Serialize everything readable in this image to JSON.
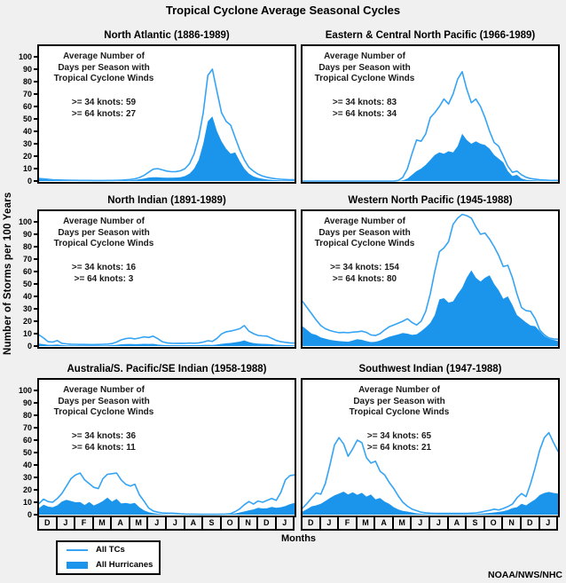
{
  "page": {
    "title": "Tropical Cyclone Average Seasonal Cycles",
    "y_axis_label": "Number of Storms per 100 Years",
    "months_label": "Months",
    "attribution": "NOAA/NWS/NHC"
  },
  "colors": {
    "tc_line": "#35a4f4",
    "hurricane_fill": "#1b95ec",
    "page_bg": "#f0f0f0",
    "panel_bg": "#ffffff",
    "border": "#000000"
  },
  "axis": {
    "y_ticks": [
      100,
      90,
      80,
      70,
      60,
      50,
      40,
      30,
      20,
      10,
      0
    ],
    "month_labels": [
      "D",
      "J",
      "F",
      "M",
      "A",
      "M",
      "J",
      "J",
      "A",
      "S",
      "O",
      "N",
      "D",
      "J"
    ]
  },
  "legend": {
    "items": [
      {
        "label": "All TCs",
        "type": "line"
      },
      {
        "label": "All Hurricanes",
        "type": "fill"
      }
    ]
  },
  "panels": [
    {
      "title": "North Atlantic (1886-1989)",
      "ann": [
        "Average Number of",
        "Days per Season with",
        "Tropical Cyclone Winds"
      ],
      "knots34": ">= 34 knots: 59",
      "knots64": ">= 64 knots: 27"
    },
    {
      "title": "Eastern & Central North Pacific (1966-1989)",
      "ann": [
        "Average Number of",
        "Days per Season with",
        "Tropical Cyclone Winds"
      ],
      "knots34": ">= 34 knots: 83",
      "knots64": ">= 64 knots: 34"
    },
    {
      "title": "North Indian (1891-1989)",
      "ann": [
        "Average Number of",
        "Days per Season with",
        "Tropical Cyclone Winds"
      ],
      "knots34": ">= 34 knots: 16",
      "knots64": ">= 64 knots: 3"
    },
    {
      "title": "Western North Pacific (1945-1988)",
      "ann": [
        "Average Number of",
        "Days per Season with",
        "Tropical Cyclone Winds"
      ],
      "knots34": ">= 34 knots: 154",
      "knots64": ">= 64 knots: 80",
      "knots34_value": 154
    },
    {
      "title": "Australia/S. Pacific/SE Indian (1958-1988)",
      "ann": [
        "Average Number of",
        "Days per Season with",
        "Tropical Cyclone Winds"
      ],
      "knots34": ">= 34 knots: 36",
      "knots64": ">= 64 knots: 11"
    },
    {
      "title": "Southwest Indian (1947-1988)",
      "ann": [
        "Average Number of",
        "Days per Season with",
        "Tropical Cyclone Winds"
      ],
      "knots34": ">= 34 knots: 65",
      "knots64": ">= 64 knots: 21"
    }
  ],
  "chart_data": [
    {
      "type": "area",
      "region": "North Atlantic",
      "period": "1886-1989",
      "title": "North Atlantic (1886-1989)",
      "xlabel": "Months",
      "ylabel": "Number of Storms per 100 Years",
      "ylim": [
        0,
        100
      ],
      "x_months": [
        "D",
        "J",
        "F",
        "M",
        "A",
        "M",
        "J",
        "J",
        "A",
        "S",
        "O",
        "N",
        "D",
        "J"
      ],
      "x_start": 0,
      "x_step": 0.25,
      "days_per_season": {
        "ge34_knots": 59,
        "ge64_knots": 27
      },
      "series": [
        {
          "name": "All TCs",
          "values": [
            2,
            1.7,
            1.4,
            1.1,
            0.9,
            0.8,
            0.7,
            0.6,
            0.6,
            0.5,
            0.5,
            0.5,
            0.4,
            0.4,
            0.4,
            0.5,
            0.5,
            0.6,
            0.7,
            0.9,
            1.2,
            1.8,
            2.8,
            4.5,
            7,
            9.5,
            10,
            9,
            8,
            7.5,
            7.6,
            8.2,
            10,
            14,
            22,
            35,
            55,
            85,
            90,
            72,
            55,
            48,
            45,
            35,
            25,
            17,
            11,
            8,
            5.5,
            4,
            3,
            2.3,
            1.8,
            1.4,
            1.2,
            1,
            1
          ]
        },
        {
          "name": "All Hurricanes",
          "values": [
            1.5,
            1.2,
            1,
            0.8,
            0.6,
            0.5,
            0.4,
            0.4,
            0.3,
            0.3,
            0.3,
            0.3,
            0.3,
            0.3,
            0.3,
            0.3,
            0.3,
            0.3,
            0.4,
            0.5,
            0.6,
            0.9,
            1.4,
            2,
            2.8,
            3,
            3,
            2.8,
            2.7,
            2.7,
            2.8,
            3.1,
            4,
            6,
            10,
            17,
            30,
            48,
            52,
            40,
            32,
            26,
            22,
            23,
            16,
            10,
            6,
            3.8,
            2.5,
            1.8,
            1.2,
            0.9,
            0.7,
            0.6,
            0.5,
            0.4,
            0.4
          ]
        }
      ]
    },
    {
      "type": "area",
      "region": "Eastern & Central North Pacific",
      "period": "1966-1989",
      "title": "Eastern & Central North Pacific (1966-1989)",
      "xlabel": "Months",
      "ylabel": "Number of Storms per 100 Years",
      "ylim": [
        0,
        100
      ],
      "x_months": [
        "D",
        "J",
        "F",
        "M",
        "A",
        "M",
        "J",
        "J",
        "A",
        "S",
        "O",
        "N",
        "D",
        "J"
      ],
      "x_start": 0,
      "x_step": 0.25,
      "days_per_season": {
        "ge34_knots": 83,
        "ge64_knots": 34
      },
      "series": [
        {
          "name": "All TCs",
          "values": [
            0,
            0,
            0,
            0,
            0,
            0,
            0,
            0,
            0,
            0,
            0,
            0,
            0,
            0,
            0,
            0,
            0,
            0,
            0,
            0,
            0,
            0.5,
            3,
            10,
            22,
            33,
            32,
            38,
            51,
            55,
            60,
            66,
            62,
            70,
            82,
            88,
            74,
            63,
            66,
            60,
            51,
            40,
            31,
            28,
            20,
            12,
            7,
            8,
            5,
            3,
            2,
            1.5,
            1,
            0.8,
            0.6,
            0.5,
            0.5
          ]
        },
        {
          "name": "All Hurricanes",
          "values": [
            0,
            0,
            0,
            0,
            0,
            0,
            0,
            0,
            0,
            0,
            0,
            0,
            0,
            0,
            0,
            0,
            0,
            0,
            0,
            0,
            0,
            0,
            0.5,
            2,
            5,
            8,
            10,
            13,
            17,
            21,
            23,
            22,
            24,
            23,
            28,
            38,
            33,
            30,
            32,
            30,
            29,
            26,
            21,
            18,
            15,
            8,
            4,
            5,
            2,
            1,
            0.7,
            0.5,
            0.3,
            0.2,
            0.2,
            0.1,
            0
          ]
        }
      ]
    },
    {
      "type": "area",
      "region": "North Indian",
      "period": "1891-1989",
      "title": "North Indian (1891-1989)",
      "xlabel": "Months",
      "ylabel": "Number of Storms per 100 Years",
      "ylim": [
        0,
        100
      ],
      "x_months": [
        "D",
        "J",
        "F",
        "M",
        "A",
        "M",
        "J",
        "J",
        "A",
        "S",
        "O",
        "N",
        "D",
        "J"
      ],
      "x_start": 0,
      "x_step": 0.25,
      "days_per_season": {
        "ge34_knots": 16,
        "ge64_knots": 3
      },
      "series": [
        {
          "name": "All TCs",
          "values": [
            9,
            6.5,
            3.5,
            3.2,
            4.4,
            2.2,
            1.8,
            1.5,
            1.4,
            1.3,
            1.3,
            1.2,
            1.2,
            1.3,
            1.4,
            1.6,
            2,
            3.2,
            5,
            6,
            6.4,
            5.8,
            6.5,
            7.4,
            6.9,
            8,
            6,
            3.5,
            2.6,
            2.3,
            2.2,
            2.3,
            2.2,
            2.4,
            2.3,
            2.6,
            3.2,
            4.3,
            3.8,
            6.2,
            9.8,
            11.5,
            12.1,
            12.9,
            14,
            16.5,
            12,
            10,
            8.6,
            8.2,
            8,
            6.2,
            4.5,
            3.5,
            3,
            2.6,
            2.4
          ]
        },
        {
          "name": "All Hurricanes",
          "values": [
            2,
            1.5,
            1,
            1,
            1.2,
            0.8,
            0.6,
            0.5,
            0.5,
            0.5,
            0.5,
            0.5,
            0.5,
            0.5,
            0.5,
            0.6,
            0.8,
            1,
            1.4,
            1.6,
            1.7,
            1.5,
            1.6,
            1.8,
            1.7,
            1.8,
            1.3,
            0.9,
            0.8,
            0.7,
            0.7,
            0.7,
            0.7,
            0.7,
            0.7,
            0.8,
            0.9,
            1,
            0.9,
            1.2,
            1.8,
            2.2,
            2.5,
            3,
            3.6,
            4.6,
            3.2,
            2.4,
            2,
            1.8,
            1.7,
            1.4,
            1.1,
            0.9,
            0.8,
            0.7,
            0.6
          ]
        }
      ]
    },
    {
      "type": "area",
      "region": "Western North Pacific",
      "period": "1945-1988",
      "title": "Western North Pacific (1945-1988)",
      "xlabel": "Months",
      "ylabel": "Number of Storms per 100 Years",
      "ylim": [
        0,
        100
      ],
      "x_months": [
        "D",
        "J",
        "F",
        "M",
        "A",
        "M",
        "J",
        "J",
        "A",
        "S",
        "O",
        "N",
        "D",
        "J"
      ],
      "x_start": 0,
      "x_step": 0.25,
      "days_per_season": {
        "ge34_knots": 154,
        "ge64_knots": 80
      },
      "series": [
        {
          "name": "All TCs",
          "values": [
            36,
            31,
            26,
            21,
            16.5,
            14,
            12.5,
            11.5,
            10.8,
            11,
            10.7,
            11.2,
            11.5,
            12,
            11,
            9,
            8.5,
            10,
            13,
            15.5,
            17,
            18.5,
            20,
            22,
            19,
            17,
            20,
            28,
            42,
            60,
            76,
            79,
            84,
            98,
            103,
            106,
            105,
            103,
            96,
            90,
            91,
            86,
            80,
            73,
            64,
            65,
            55,
            42,
            31,
            28.5,
            28,
            22,
            13,
            9,
            6.6,
            5.8,
            5.5
          ]
        },
        {
          "name": "All Hurricanes",
          "values": [
            16,
            13,
            10,
            9,
            7,
            6,
            5,
            4.5,
            4,
            3.7,
            3.5,
            4.5,
            5.5,
            5,
            4,
            3.2,
            3.5,
            4.5,
            6,
            7.5,
            8.5,
            9.5,
            10.5,
            10,
            9,
            9.5,
            12,
            15,
            18.6,
            25,
            37.6,
            38.6,
            35,
            36,
            42,
            47,
            55,
            61,
            55,
            52,
            55,
            57,
            50,
            45,
            38,
            40,
            33,
            25,
            22,
            19,
            16.5,
            16,
            12,
            8,
            6,
            5,
            4
          ]
        }
      ]
    },
    {
      "type": "area",
      "region": "Australia/S. Pacific/SE Indian",
      "period": "1958-1988",
      "title": "Australia/S. Pacific/SE Indian (1958-1988)",
      "xlabel": "Months",
      "ylabel": "Number of Storms per 100 Years",
      "ylim": [
        0,
        100
      ],
      "x_months": [
        "D",
        "J",
        "F",
        "M",
        "A",
        "M",
        "J",
        "J",
        "A",
        "S",
        "O",
        "N",
        "D",
        "J"
      ],
      "x_start": 0,
      "x_step": 0.25,
      "days_per_season": {
        "ge34_knots": 36,
        "ge64_knots": 11
      },
      "series": [
        {
          "name": "All TCs",
          "values": [
            9,
            12.5,
            10.5,
            10,
            13,
            17,
            23,
            29,
            32,
            33.5,
            28,
            25,
            22,
            21,
            29,
            32.5,
            33,
            33.5,
            28,
            24.5,
            23,
            24.5,
            16,
            11,
            5.5,
            3,
            2,
            1.4,
            1.2,
            1.2,
            1,
            0.7,
            0.5,
            0.4,
            0.4,
            0.3,
            0.3,
            0.3,
            0.3,
            0.3,
            0.4,
            0.5,
            0.8,
            2.5,
            4.7,
            8,
            10.6,
            8.5,
            11,
            10,
            11.5,
            13,
            11.5,
            18,
            28,
            31.5,
            32
          ]
        },
        {
          "name": "All Hurricanes",
          "values": [
            5.3,
            8,
            6.5,
            6,
            7.5,
            10.5,
            12,
            11,
            10,
            10.2,
            7.8,
            10.2,
            7.4,
            9,
            11,
            13.7,
            10.6,
            12.7,
            9,
            9.5,
            8.8,
            9.5,
            6,
            3.5,
            2.1,
            1.2,
            0.7,
            0.4,
            0.3,
            0.2,
            0.2,
            0.1,
            0.1,
            0.6,
            0.7,
            0.2,
            0.1,
            0.1,
            0.1,
            0.2,
            0.3,
            0.4,
            0.6,
            1,
            1.8,
            2.6,
            3.5,
            4.2,
            5.6,
            5,
            5.2,
            6.3,
            5.5,
            6,
            7,
            8.5,
            9.4
          ]
        }
      ]
    },
    {
      "type": "area",
      "region": "Southwest Indian",
      "period": "1947-1988",
      "title": "Southwest Indian (1947-1988)",
      "xlabel": "Months",
      "ylabel": "Number of Storms per 100 Years",
      "ylim": [
        0,
        100
      ],
      "x_months": [
        "D",
        "J",
        "F",
        "M",
        "A",
        "M",
        "J",
        "J",
        "A",
        "S",
        "O",
        "N",
        "D",
        "J"
      ],
      "x_start": 0,
      "x_step": 0.25,
      "days_per_season": {
        "ge34_knots": 65,
        "ge64_knots": 21
      },
      "series": [
        {
          "name": "All TCs",
          "values": [
            5.2,
            9,
            13.5,
            17.5,
            16.5,
            25,
            40,
            56,
            62,
            57,
            47,
            53,
            60,
            58,
            46,
            41.5,
            43,
            35,
            32,
            26,
            21,
            15,
            10,
            6.8,
            4.5,
            3.2,
            2,
            1.5,
            1.2,
            1.1,
            1,
            1,
            1,
            1,
            1,
            1,
            1.1,
            1.2,
            1.4,
            2,
            2.8,
            3.4,
            4.4,
            3.8,
            5,
            6.5,
            8.5,
            13.5,
            17,
            14.5,
            25,
            38,
            52,
            62,
            66,
            58,
            51
          ]
        },
        {
          "name": "All Hurricanes",
          "values": [
            2.5,
            4.5,
            6.7,
            7.5,
            8.8,
            11,
            13.4,
            15.5,
            17,
            18.6,
            16.2,
            18,
            16,
            17.6,
            14.6,
            16.2,
            12.3,
            13.4,
            10.5,
            8.8,
            6,
            4.2,
            3,
            2.5,
            1.8,
            1.1,
            0.7,
            0.5,
            0.4,
            0.4,
            0.4,
            0.4,
            0.4,
            0.4,
            0.4,
            0.4,
            0.4,
            0.5,
            0.6,
            0.8,
            1.1,
            1.4,
            1.8,
            2.2,
            2.8,
            3.8,
            5.3,
            6,
            8.8,
            7.5,
            10,
            12.3,
            15.8,
            17.5,
            18.3,
            17.5,
            17
          ]
        }
      ]
    }
  ]
}
